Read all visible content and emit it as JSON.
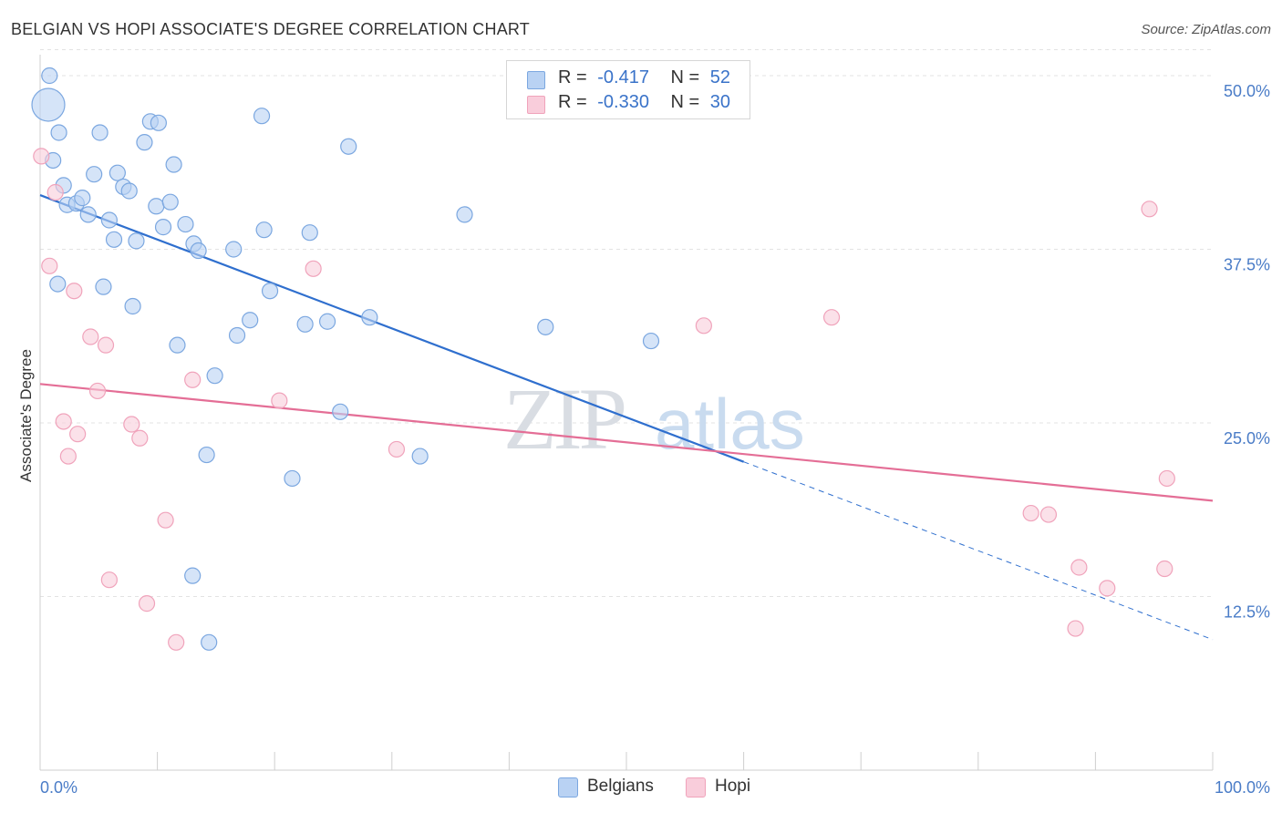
{
  "header": {
    "title": "BELGIAN VS HOPI ASSOCIATE'S DEGREE CORRELATION CHART",
    "source": "Source: ZipAtlas.com"
  },
  "legend": {
    "belgians": {
      "r_label": "R =",
      "r_value": "-0.417",
      "n_label": "N =",
      "n_value": "52"
    },
    "hopi": {
      "r_label": "R =",
      "r_value": "-0.330",
      "n_label": "N =",
      "n_value": "30"
    }
  },
  "bottom_legend": {
    "belgians": "Belgians",
    "hopi": "Hopi"
  },
  "watermark": {
    "zip": "ZIP",
    "atlas": "atlas"
  },
  "chart_data": {
    "type": "scatter",
    "title": "BELGIAN VS HOPI ASSOCIATE'S DEGREE CORRELATION CHART",
    "xlabel": "",
    "ylabel": "Associate's Degree",
    "xlim": [
      0,
      100
    ],
    "ylim": [
      0,
      52
    ],
    "x_tick_labels": [
      "0.0%",
      "100.0%"
    ],
    "y_ticks": [
      {
        "value": 12.5,
        "label": "12.5%"
      },
      {
        "value": 25.0,
        "label": "25.0%"
      },
      {
        "value": 37.5,
        "label": "37.5%"
      },
      {
        "value": 50.0,
        "label": "50.0%"
      }
    ],
    "colors": {
      "belgians": "#7ba7e0",
      "belgians_fill": "#b9d2f3",
      "belgians_line": "#2f6fce",
      "hopi": "#f0a3bb",
      "hopi_fill": "#f9cddb",
      "hopi_line": "#e46e96"
    },
    "series": [
      {
        "name": "Belgians",
        "points": [
          [
            0.7,
            47.9,
            2
          ],
          [
            0.8,
            50.0,
            1
          ],
          [
            1.1,
            43.9,
            1
          ],
          [
            1.6,
            45.9,
            1
          ],
          [
            2.0,
            42.1,
            1
          ],
          [
            2.3,
            40.7,
            1
          ],
          [
            3.1,
            40.8,
            1
          ],
          [
            3.6,
            41.2,
            1
          ],
          [
            4.1,
            40.0,
            1
          ],
          [
            4.6,
            42.9,
            1
          ],
          [
            5.1,
            45.9,
            1
          ],
          [
            5.4,
            34.8,
            1
          ],
          [
            5.9,
            39.6,
            1
          ],
          [
            6.3,
            38.2,
            1
          ],
          [
            6.6,
            43.0,
            1
          ],
          [
            7.1,
            42.0,
            1
          ],
          [
            7.6,
            41.7,
            1
          ],
          [
            7.9,
            33.4,
            1
          ],
          [
            8.2,
            38.1,
            1
          ],
          [
            8.9,
            45.2,
            1
          ],
          [
            9.4,
            46.7,
            1
          ],
          [
            10.1,
            46.6,
            1
          ],
          [
            9.9,
            40.6,
            1
          ],
          [
            10.5,
            39.1,
            1
          ],
          [
            11.1,
            40.9,
            1
          ],
          [
            11.4,
            43.6,
            1
          ],
          [
            11.7,
            30.6,
            1
          ],
          [
            12.4,
            39.3,
            1
          ],
          [
            13.1,
            37.9,
            1
          ],
          [
            13.5,
            37.4,
            1
          ],
          [
            14.2,
            22.7,
            1
          ],
          [
            14.4,
            9.2,
            1
          ],
          [
            14.9,
            28.4,
            1
          ],
          [
            16.5,
            37.5,
            1
          ],
          [
            16.8,
            31.3,
            1
          ],
          [
            17.9,
            32.4,
            1
          ],
          [
            18.9,
            47.1,
            1
          ],
          [
            19.1,
            38.9,
            1
          ],
          [
            19.6,
            34.5,
            1
          ],
          [
            21.5,
            21.0,
            1
          ],
          [
            22.6,
            32.1,
            1
          ],
          [
            23.0,
            38.7,
            1
          ],
          [
            24.5,
            32.3,
            1
          ],
          [
            25.6,
            25.8,
            1
          ],
          [
            26.3,
            44.9,
            1
          ],
          [
            28.1,
            32.6,
            1
          ],
          [
            13.0,
            14.0,
            1
          ],
          [
            32.4,
            22.6,
            1
          ],
          [
            36.2,
            40.0,
            1
          ],
          [
            43.1,
            31.9,
            1
          ],
          [
            52.1,
            30.9,
            1
          ],
          [
            1.5,
            35.0,
            1
          ]
        ]
      },
      {
        "name": "Hopi",
        "points": [
          [
            0.1,
            44.2,
            1
          ],
          [
            1.3,
            41.6,
            1
          ],
          [
            0.8,
            36.3,
            1
          ],
          [
            2.9,
            34.5,
            1
          ],
          [
            2.0,
            25.1,
            1
          ],
          [
            2.4,
            22.6,
            1
          ],
          [
            3.2,
            24.2,
            1
          ],
          [
            4.3,
            31.2,
            1
          ],
          [
            4.9,
            27.3,
            1
          ],
          [
            5.6,
            30.6,
            1
          ],
          [
            5.9,
            13.7,
            1
          ],
          [
            7.8,
            24.9,
            1
          ],
          [
            8.5,
            23.9,
            1
          ],
          [
            9.1,
            12.0,
            1
          ],
          [
            10.7,
            18.0,
            1
          ],
          [
            11.6,
            9.2,
            1
          ],
          [
            13.0,
            28.1,
            1
          ],
          [
            20.4,
            26.6,
            1
          ],
          [
            23.3,
            36.1,
            1
          ],
          [
            30.4,
            23.1,
            1
          ],
          [
            56.6,
            32.0,
            1
          ],
          [
            67.5,
            32.6,
            1
          ],
          [
            84.5,
            18.5,
            1
          ],
          [
            86.0,
            18.4,
            1
          ],
          [
            88.3,
            10.2,
            1
          ],
          [
            88.6,
            14.6,
            1
          ],
          [
            91.0,
            13.1,
            1
          ],
          [
            94.6,
            40.4,
            1
          ],
          [
            95.9,
            14.5,
            1
          ],
          [
            96.1,
            21.0,
            1
          ]
        ]
      }
    ],
    "trend_lines": [
      {
        "name": "Belgians",
        "start": [
          0,
          41.4
        ],
        "end": [
          60.0,
          22.2
        ],
        "dashed_end": [
          100.0,
          9.4
        ]
      },
      {
        "name": "Hopi",
        "start": [
          0,
          27.8
        ],
        "end": [
          100.0,
          19.4
        ]
      }
    ]
  }
}
